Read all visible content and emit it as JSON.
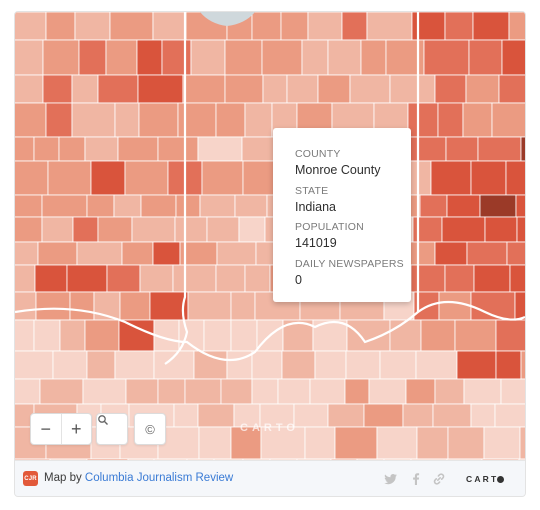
{
  "map": {
    "colors": {
      "lightest": "#f7d4c9",
      "light": "#f0b6a3",
      "mid": "#eb9b82",
      "strong": "#e27059",
      "stronger": "#d9543c",
      "darkest": "#9b3a28",
      "border": "#ffffff"
    },
    "watermark": "CARTO"
  },
  "tooltip": {
    "fields": [
      {
        "label": "COUNTY",
        "value": "Monroe County"
      },
      {
        "label": "STATE",
        "value": "Indiana"
      },
      {
        "label": "POPULATION",
        "value": "141019"
      },
      {
        "label": "DAILY NEWSPAPERS",
        "value": "0"
      }
    ]
  },
  "controls": {
    "zoom_out": "−",
    "zoom_in": "+",
    "search_icon": "search-icon",
    "attribution_icon": "copyright-icon",
    "attribution_symbol": "©"
  },
  "footer": {
    "logo_text": "CJR",
    "prefix": "Map by ",
    "link": "Columbia Journalism Review",
    "share_icons": [
      "twitter-icon",
      "facebook-icon",
      "link-icon"
    ],
    "brand": "CART"
  }
}
